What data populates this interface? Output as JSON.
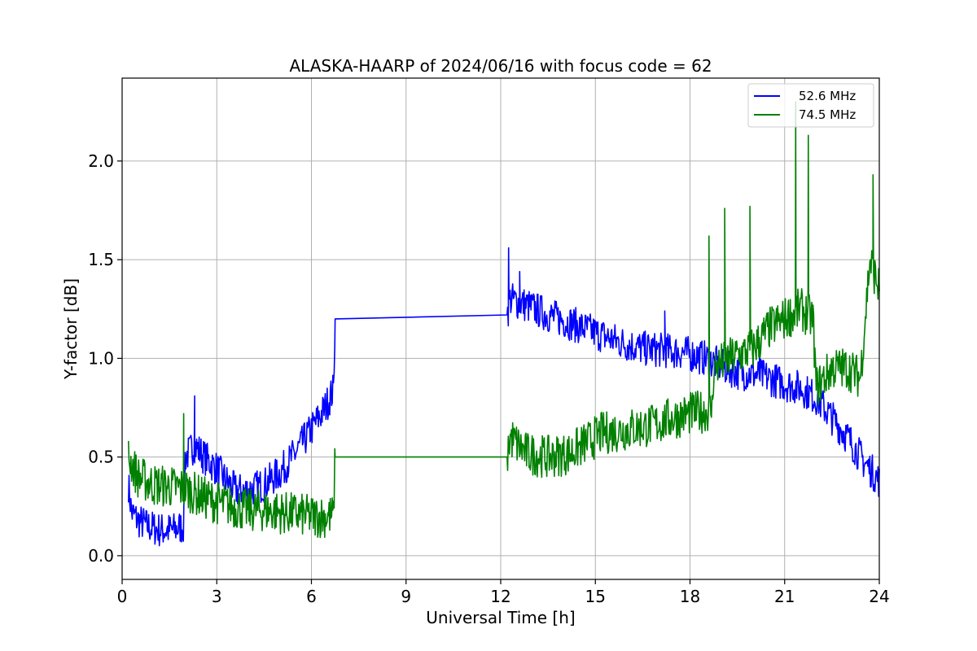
{
  "chart_data": {
    "type": "line",
    "title": "ALASKA-HAARP of 2024/06/16 with focus code = 62",
    "xlabel": "Universal Time [h]",
    "ylabel": "Y-factor [dB]",
    "xlim": [
      0,
      24
    ],
    "ylim": [
      -0.12,
      2.42
    ],
    "xticks": [
      0,
      3,
      6,
      9,
      12,
      15,
      18,
      21,
      24
    ],
    "xtick_labels": [
      "0",
      "3",
      "6",
      "9",
      "12",
      "15",
      "18",
      "21",
      "24"
    ],
    "yticks": [
      0.0,
      0.5,
      1.0,
      1.5,
      2.0
    ],
    "ytick_labels": [
      "0.0",
      "0.5",
      "1.0",
      "1.5",
      "2.0"
    ],
    "grid": true,
    "legend_position": "top-right",
    "series": [
      {
        "name": "52.6 MHz",
        "color": "#0000ff",
        "points": [
          [
            0.2,
            0.36
          ],
          [
            0.3,
            0.22
          ],
          [
            0.5,
            0.18
          ],
          [
            0.8,
            0.15
          ],
          [
            1.2,
            0.13
          ],
          [
            1.6,
            0.13
          ],
          [
            1.95,
            0.15
          ],
          [
            2.0,
            0.5
          ],
          [
            2.3,
            0.56
          ],
          [
            2.6,
            0.5
          ],
          [
            3.0,
            0.44
          ],
          [
            3.3,
            0.38
          ],
          [
            3.6,
            0.33
          ],
          [
            4.0,
            0.33
          ],
          [
            4.5,
            0.36
          ],
          [
            5.0,
            0.42
          ],
          [
            5.5,
            0.52
          ],
          [
            6.0,
            0.64
          ],
          [
            6.4,
            0.74
          ],
          [
            6.7,
            0.84
          ],
          [
            6.75,
            1.2
          ],
          [
            12.2,
            1.22
          ],
          [
            12.3,
            1.3
          ],
          [
            12.8,
            1.27
          ],
          [
            13.5,
            1.22
          ],
          [
            14.2,
            1.18
          ],
          [
            15.0,
            1.13
          ],
          [
            15.8,
            1.08
          ],
          [
            16.5,
            1.05
          ],
          [
            17.2,
            1.04
          ],
          [
            17.8,
            1.03
          ],
          [
            18.5,
            1.0
          ],
          [
            19.0,
            0.96
          ],
          [
            19.5,
            0.93
          ],
          [
            20.0,
            0.92
          ],
          [
            20.5,
            0.9
          ],
          [
            21.0,
            0.87
          ],
          [
            21.5,
            0.85
          ],
          [
            22.0,
            0.8
          ],
          [
            22.5,
            0.7
          ],
          [
            23.0,
            0.6
          ],
          [
            23.5,
            0.48
          ],
          [
            24.0,
            0.38
          ]
        ],
        "spikes": [
          [
            2.3,
            0.81
          ],
          [
            12.25,
            1.56
          ],
          [
            12.6,
            1.44
          ],
          [
            17.2,
            1.24
          ],
          [
            20.2,
            1.06
          ]
        ]
      },
      {
        "name": "74.5 MHz",
        "color": "#008000",
        "points": [
          [
            0.2,
            0.5
          ],
          [
            0.5,
            0.4
          ],
          [
            1.0,
            0.36
          ],
          [
            1.5,
            0.35
          ],
          [
            2.0,
            0.34
          ],
          [
            2.5,
            0.3
          ],
          [
            3.0,
            0.27
          ],
          [
            3.5,
            0.25
          ],
          [
            4.0,
            0.23
          ],
          [
            4.5,
            0.23
          ],
          [
            5.0,
            0.22
          ],
          [
            5.5,
            0.21
          ],
          [
            6.0,
            0.2
          ],
          [
            6.7,
            0.2
          ],
          [
            6.75,
            0.5
          ],
          [
            12.2,
            0.5
          ],
          [
            12.3,
            0.6
          ],
          [
            12.8,
            0.52
          ],
          [
            13.5,
            0.5
          ],
          [
            14.2,
            0.52
          ],
          [
            14.8,
            0.58
          ],
          [
            15.2,
            0.62
          ],
          [
            16.0,
            0.64
          ],
          [
            16.8,
            0.66
          ],
          [
            17.5,
            0.7
          ],
          [
            18.0,
            0.72
          ],
          [
            18.7,
            0.74
          ],
          [
            18.75,
            0.95
          ],
          [
            19.3,
            1.0
          ],
          [
            20.0,
            1.05
          ],
          [
            20.5,
            1.15
          ],
          [
            21.0,
            1.2
          ],
          [
            21.5,
            1.25
          ],
          [
            21.9,
            1.2
          ],
          [
            22.0,
            0.85
          ],
          [
            22.5,
            0.95
          ],
          [
            23.0,
            0.95
          ],
          [
            23.4,
            0.9
          ],
          [
            23.7,
            1.5
          ],
          [
            24.0,
            1.35
          ]
        ],
        "spikes": [
          [
            1.95,
            0.72
          ],
          [
            18.6,
            1.62
          ],
          [
            19.1,
            1.76
          ],
          [
            19.9,
            1.77
          ],
          [
            21.35,
            2.3
          ],
          [
            21.75,
            2.13
          ],
          [
            23.8,
            1.93
          ]
        ]
      }
    ]
  }
}
